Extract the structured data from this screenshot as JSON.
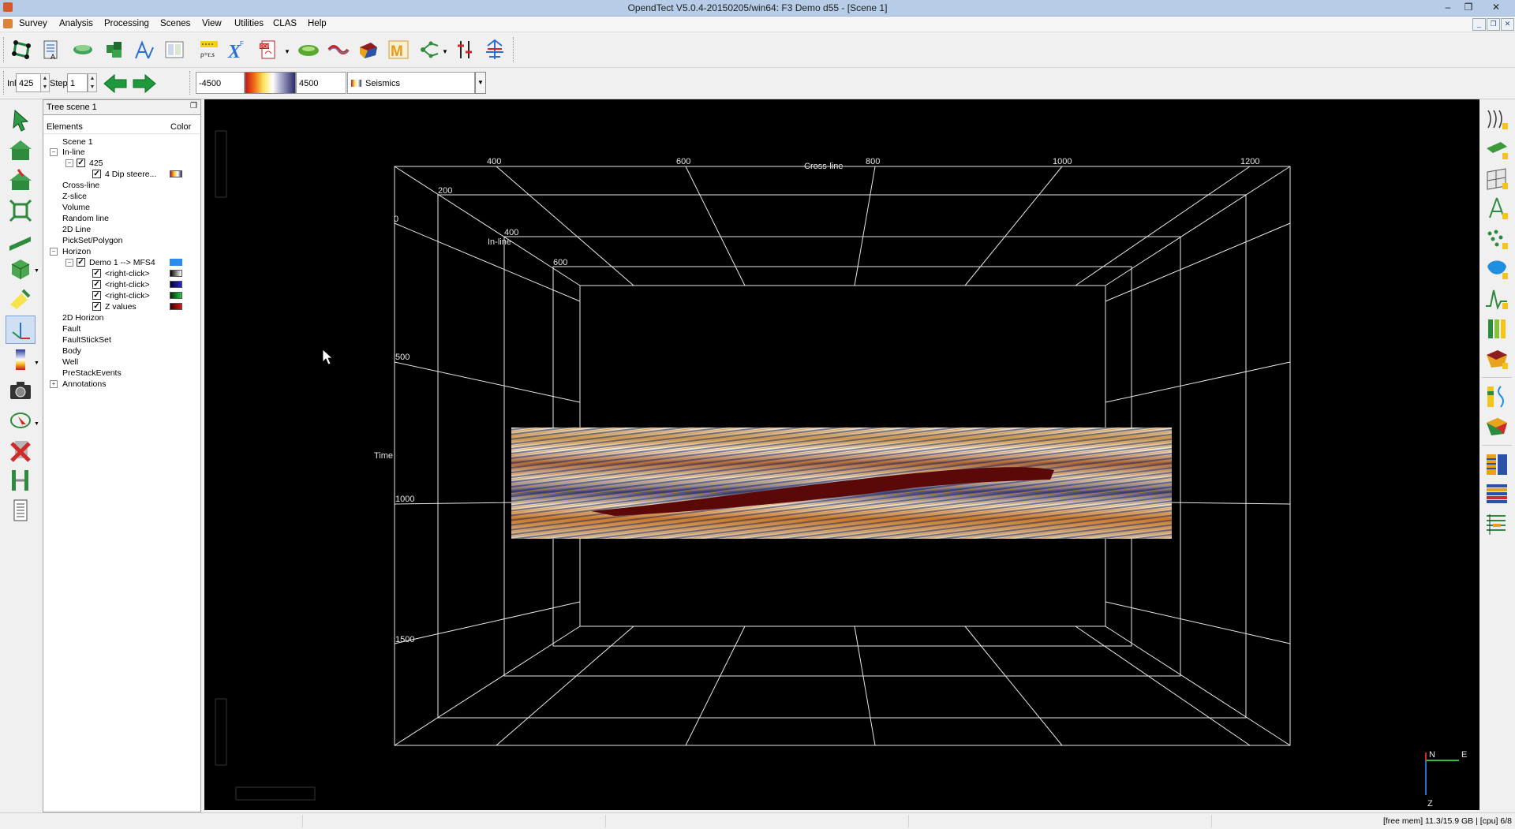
{
  "window": {
    "title": "OpendTect V5.0.4-20150205/win64: F3 Demo d55 - [Scene 1]",
    "min": "–",
    "restore": "❐",
    "close": "✕"
  },
  "menu": [
    "Survey",
    "Analysis",
    "Processing",
    "Scenes",
    "View",
    "Utilities",
    "CLAS",
    "Help"
  ],
  "slice_toolbar": {
    "inl_label": "Inl",
    "inl_value": "425",
    "step_label": "Step",
    "step_value": "1",
    "range_min": "-4500",
    "range_max": "4500",
    "colortable": "Seismics"
  },
  "tree": {
    "title": "Tree scene 1",
    "col_elements": "Elements",
    "col_color": "Color",
    "items": [
      {
        "label": "Scene 1"
      },
      {
        "label": "In-line"
      },
      {
        "label": "425"
      },
      {
        "label": "4 Dip steere..."
      },
      {
        "label": "Cross-line"
      },
      {
        "label": "Z-slice"
      },
      {
        "label": "Volume"
      },
      {
        "label": "Random line"
      },
      {
        "label": "2D Line"
      },
      {
        "label": "PickSet/Polygon"
      },
      {
        "label": "Horizon"
      },
      {
        "label": "Demo 1 --> MFS4"
      },
      {
        "label": "<right-click>"
      },
      {
        "label": "<right-click>"
      },
      {
        "label": "<right-click>"
      },
      {
        "label": "Z values"
      },
      {
        "label": "2D Horizon"
      },
      {
        "label": "Fault"
      },
      {
        "label": "FaultStickSet"
      },
      {
        "label": "Body"
      },
      {
        "label": "Well"
      },
      {
        "label": "PreStackEvents"
      },
      {
        "label": "Annotations"
      }
    ]
  },
  "scene": {
    "crossline_title": "Cross-line",
    "inline_title": "In-line",
    "time_title": "Time",
    "crossline_ticks": [
      "400",
      "600",
      "800",
      "1000",
      "1200"
    ],
    "inline_ticks": [
      "200",
      "400",
      "600"
    ],
    "time_ticks": [
      "0",
      "500",
      "1000",
      "1500"
    ],
    "compass": {
      "n": "N",
      "e": "E",
      "z": "Z"
    }
  },
  "status": "[free mem] 11.3/15.9 GB | [cpu] 6/8",
  "colors": {
    "accent": "#2a6fd6",
    "horizon": "#5b0808",
    "titlebar": "#b7cde7"
  }
}
